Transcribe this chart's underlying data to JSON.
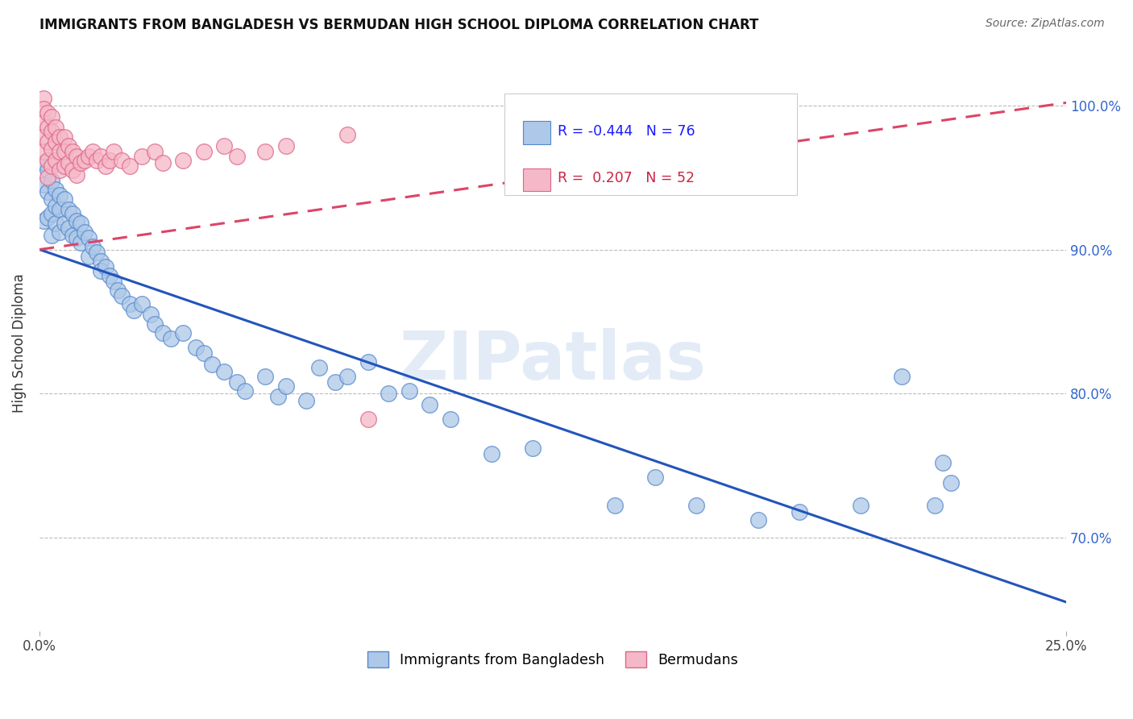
{
  "title": "IMMIGRANTS FROM BANGLADESH VS BERMUDAN HIGH SCHOOL DIPLOMA CORRELATION CHART",
  "source": "Source: ZipAtlas.com",
  "ylabel": "High School Diploma",
  "xlim": [
    0.0,
    0.25
  ],
  "ylim": [
    0.635,
    1.035
  ],
  "yticks": [
    0.7,
    0.8,
    0.9,
    1.0
  ],
  "yticklabels": [
    "70.0%",
    "80.0%",
    "90.0%",
    "100.0%"
  ],
  "blue_R": "-0.444",
  "blue_N": "76",
  "pink_R": "0.207",
  "pink_N": "52",
  "blue_color": "#adc8e8",
  "blue_edge": "#5588cc",
  "pink_color": "#f5b8c8",
  "pink_edge": "#dd6688",
  "blue_line_color": "#2255bb",
  "pink_line_color": "#dd4466",
  "legend_label_blue": "Immigrants from Bangladesh",
  "legend_label_pink": "Bermudans",
  "watermark": "ZIPatlas",
  "blue_x": [
    0.001,
    0.001,
    0.001,
    0.002,
    0.002,
    0.002,
    0.003,
    0.003,
    0.003,
    0.003,
    0.004,
    0.004,
    0.004,
    0.005,
    0.005,
    0.005,
    0.006,
    0.006,
    0.007,
    0.007,
    0.008,
    0.008,
    0.009,
    0.009,
    0.01,
    0.01,
    0.011,
    0.012,
    0.012,
    0.013,
    0.014,
    0.015,
    0.015,
    0.016,
    0.017,
    0.018,
    0.019,
    0.02,
    0.022,
    0.023,
    0.025,
    0.027,
    0.028,
    0.03,
    0.032,
    0.035,
    0.038,
    0.04,
    0.042,
    0.045,
    0.048,
    0.05,
    0.055,
    0.058,
    0.06,
    0.065,
    0.068,
    0.072,
    0.075,
    0.08,
    0.085,
    0.09,
    0.095,
    0.1,
    0.11,
    0.12,
    0.14,
    0.15,
    0.16,
    0.175,
    0.185,
    0.2,
    0.21,
    0.218,
    0.22,
    0.222
  ],
  "blue_y": [
    0.96,
    0.945,
    0.92,
    0.955,
    0.94,
    0.922,
    0.948,
    0.935,
    0.925,
    0.91,
    0.942,
    0.93,
    0.918,
    0.938,
    0.928,
    0.912,
    0.935,
    0.918,
    0.928,
    0.915,
    0.925,
    0.91,
    0.92,
    0.908,
    0.918,
    0.905,
    0.912,
    0.908,
    0.895,
    0.902,
    0.898,
    0.892,
    0.885,
    0.888,
    0.882,
    0.878,
    0.872,
    0.868,
    0.862,
    0.858,
    0.862,
    0.855,
    0.848,
    0.842,
    0.838,
    0.842,
    0.832,
    0.828,
    0.82,
    0.815,
    0.808,
    0.802,
    0.812,
    0.798,
    0.805,
    0.795,
    0.818,
    0.808,
    0.812,
    0.822,
    0.8,
    0.802,
    0.792,
    0.782,
    0.758,
    0.762,
    0.722,
    0.742,
    0.722,
    0.712,
    0.718,
    0.722,
    0.812,
    0.722,
    0.752,
    0.738
  ],
  "pink_x": [
    0.001,
    0.001,
    0.001,
    0.001,
    0.001,
    0.002,
    0.002,
    0.002,
    0.002,
    0.002,
    0.003,
    0.003,
    0.003,
    0.003,
    0.004,
    0.004,
    0.004,
    0.005,
    0.005,
    0.005,
    0.006,
    0.006,
    0.006,
    0.007,
    0.007,
    0.008,
    0.008,
    0.009,
    0.009,
    0.01,
    0.011,
    0.012,
    0.013,
    0.014,
    0.015,
    0.016,
    0.017,
    0.018,
    0.02,
    0.022,
    0.025,
    0.028,
    0.03,
    0.035,
    0.04,
    0.045,
    0.048,
    0.055,
    0.06,
    0.075,
    0.08,
    0.16
  ],
  "pink_y": [
    1.005,
    0.998,
    0.988,
    0.978,
    0.968,
    0.995,
    0.985,
    0.975,
    0.962,
    0.95,
    0.992,
    0.982,
    0.97,
    0.958,
    0.985,
    0.975,
    0.962,
    0.978,
    0.968,
    0.955,
    0.978,
    0.968,
    0.958,
    0.972,
    0.96,
    0.968,
    0.955,
    0.965,
    0.952,
    0.96,
    0.962,
    0.965,
    0.968,
    0.962,
    0.965,
    0.958,
    0.962,
    0.968,
    0.962,
    0.958,
    0.965,
    0.968,
    0.96,
    0.962,
    0.968,
    0.972,
    0.965,
    0.968,
    0.972,
    0.98,
    0.782,
    0.968
  ],
  "blue_line": [
    0.0,
    0.25,
    0.9,
    0.655
  ],
  "pink_line": [
    0.0,
    0.25,
    0.9,
    1.002
  ]
}
